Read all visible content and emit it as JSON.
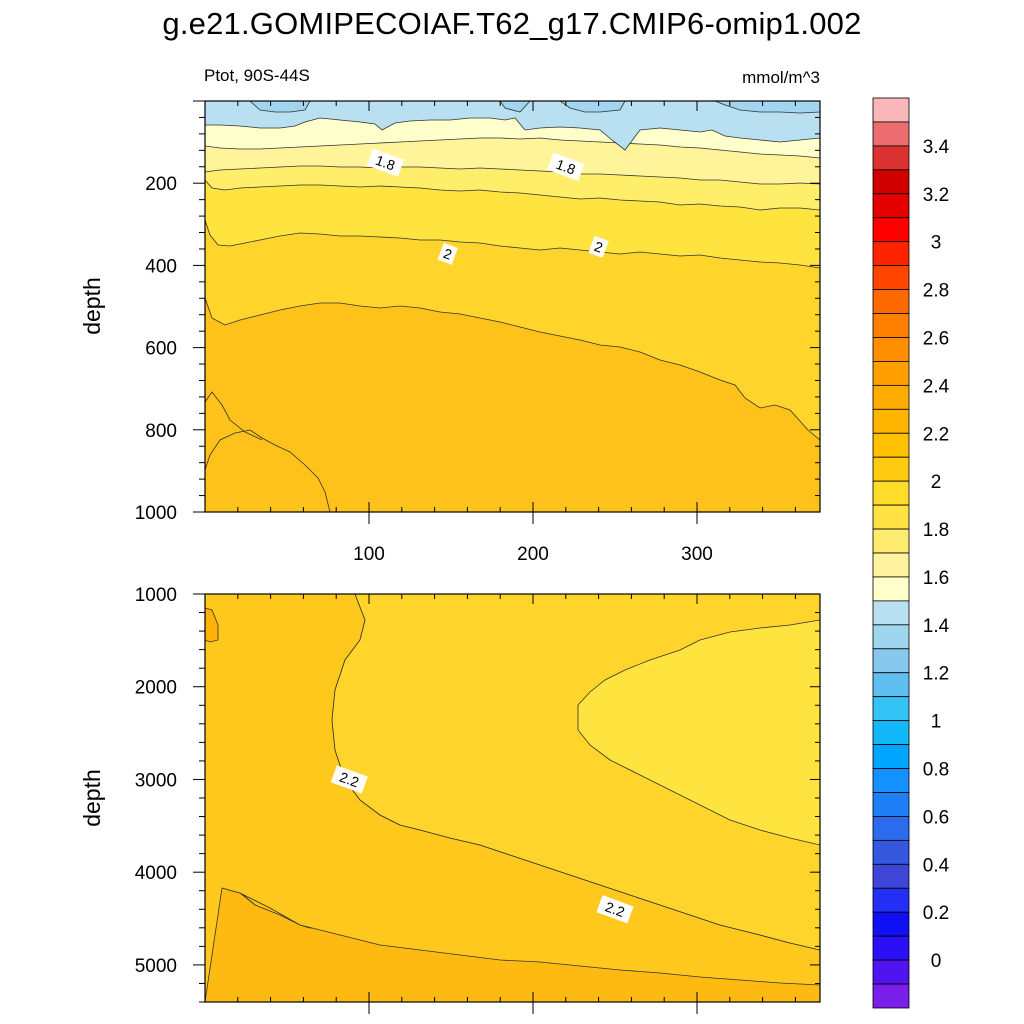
{
  "title": "g.e21.GOMIPECOIAF.T62_g17.CMIP6-omip1.002",
  "left_subtitle": "Ptot, 90S-44S",
  "right_subtitle": "mmol/m^3",
  "chart_data": [
    {
      "type": "filled-contour",
      "panel": "upper",
      "ylabel": "depth",
      "xlabel": "",
      "xlim": [
        0,
        375
      ],
      "ylim": [
        1000,
        0
      ],
      "xticks": [
        100,
        200,
        300
      ],
      "yticks": [
        200,
        400,
        600,
        800,
        1000
      ],
      "contour_labels": [
        {
          "x": 110,
          "y": 150,
          "text": "1.8"
        },
        {
          "x": 220,
          "y": 160,
          "text": "1.8"
        },
        {
          "x": 148,
          "y": 372,
          "text": "2"
        },
        {
          "x": 240,
          "y": 355,
          "text": "2"
        }
      ]
    },
    {
      "type": "filled-contour",
      "panel": "lower",
      "ylabel": "depth",
      "xlabel": "",
      "xlim": [
        0,
        375
      ],
      "ylim": [
        5400,
        1000
      ],
      "xticks": [
        100,
        200,
        300
      ],
      "yticks": [
        1000,
        2000,
        3000,
        4000,
        5000
      ],
      "contour_labels": [
        {
          "x": 88,
          "y": 3000,
          "text": "2.2"
        },
        {
          "x": 250,
          "y": 4400,
          "text": "2.2"
        }
      ]
    }
  ],
  "colorbar": {
    "labels": [
      "3.4",
      "3.2",
      "3",
      "2.8",
      "2.6",
      "2.4",
      "2.2",
      "2",
      "1.8",
      "1.6",
      "1.4",
      "1.2",
      "1",
      "0.8",
      "0.6",
      "0.4",
      "0.2",
      "0"
    ],
    "colors_top_to_bottom": [
      "#F9B7B9",
      "#EC6D6F",
      "#DB3131",
      "#CF0000",
      "#E50000",
      "#FF0000",
      "#FF2400",
      "#FF4500",
      "#FF6A00",
      "#FF7F00",
      "#FF8F00",
      "#FF9F00",
      "#FFAC00",
      "#FFB500",
      "#FFC000",
      "#FFCB10",
      "#FFDB2A",
      "#FFE345",
      "#FFEB70",
      "#FFF3A0",
      "#FFFFCC",
      "#B8E0F0",
      "#A0D5EE",
      "#86C9EC",
      "#5FBFF0",
      "#35C3F6",
      "#12B8FA",
      "#00A5FF",
      "#1590FF",
      "#207FF5",
      "#2C6BEB",
      "#3558DF",
      "#3F45D6",
      "#2430F5",
      "#1010F5",
      "#2C10F5",
      "#5014F0",
      "#7A1FE9"
    ]
  }
}
